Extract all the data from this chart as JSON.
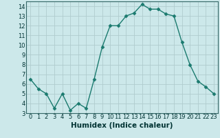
{
  "x": [
    0,
    1,
    2,
    3,
    4,
    5,
    6,
    7,
    8,
    9,
    10,
    11,
    12,
    13,
    14,
    15,
    16,
    17,
    18,
    19,
    20,
    21,
    22,
    23
  ],
  "y": [
    6.5,
    5.5,
    5.0,
    3.5,
    5.0,
    3.3,
    4.0,
    3.5,
    6.5,
    9.8,
    12.0,
    12.0,
    13.0,
    13.3,
    14.2,
    13.7,
    13.7,
    13.2,
    13.0,
    10.3,
    8.0,
    6.3,
    5.7,
    5.0
  ],
  "line_color": "#1a7a6e",
  "bg_color": "#cce8ea",
  "grid_color": "#b0ccce",
  "xlabel": "Humidex (Indice chaleur)",
  "ylim": [
    3,
    14.5
  ],
  "xlim": [
    -0.5,
    23.5
  ],
  "yticks": [
    3,
    4,
    5,
    6,
    7,
    8,
    9,
    10,
    11,
    12,
    13,
    14
  ],
  "xticks": [
    0,
    1,
    2,
    3,
    4,
    5,
    6,
    7,
    8,
    9,
    10,
    11,
    12,
    13,
    14,
    15,
    16,
    17,
    18,
    19,
    20,
    21,
    22,
    23
  ],
  "xtick_labels": [
    "0",
    "1",
    "2",
    "3",
    "4",
    "5",
    "6",
    "7",
    "8",
    "9",
    "10",
    "11",
    "12",
    "13",
    "14",
    "15",
    "16",
    "17",
    "18",
    "19",
    "20",
    "21",
    "22",
    "23"
  ],
  "marker_size": 2.5,
  "line_width": 1.0,
  "xlabel_fontsize": 7.5,
  "tick_fontsize": 6.0,
  "xlabel_color": "#003333",
  "axis_color": "#336666"
}
